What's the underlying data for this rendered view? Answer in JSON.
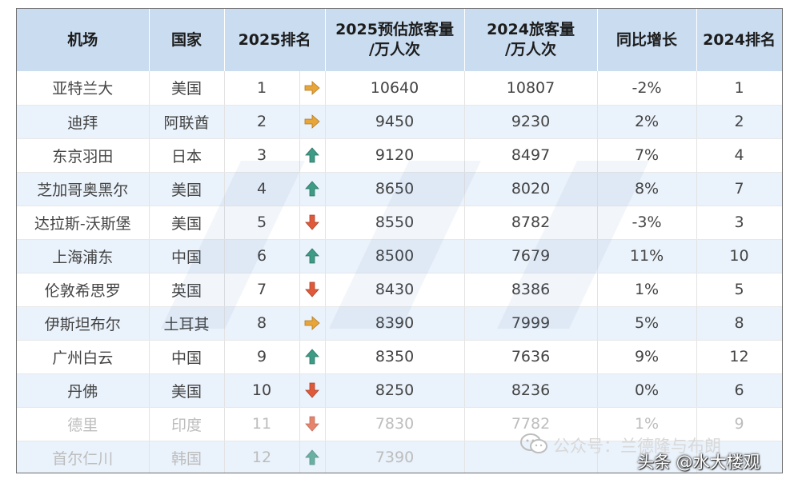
{
  "headers": {
    "airport": "机场",
    "country": "国家",
    "rank2025": "2025排名",
    "pax2025": [
      "2025预估旅客量",
      "/万人次"
    ],
    "pax2024": [
      "2024旅客量",
      "/万人次"
    ],
    "yoy": "同比增长",
    "rank2024": "2024排名"
  },
  "rows": [
    {
      "airport": "亚特兰大",
      "country": "美国",
      "rank2025": "1",
      "trend": "flat",
      "pax2025": "10640",
      "pax2024": "10807",
      "yoy": "-2%",
      "rank2024": "1"
    },
    {
      "airport": "迪拜",
      "country": "阿联酋",
      "rank2025": "2",
      "trend": "flat",
      "pax2025": "9450",
      "pax2024": "9230",
      "yoy": "2%",
      "rank2024": "2"
    },
    {
      "airport": "东京羽田",
      "country": "日本",
      "rank2025": "3",
      "trend": "up",
      "pax2025": "9120",
      "pax2024": "8497",
      "yoy": "7%",
      "rank2024": "4"
    },
    {
      "airport": "芝加哥奥黑尔",
      "country": "美国",
      "rank2025": "4",
      "trend": "up",
      "pax2025": "8650",
      "pax2024": "8020",
      "yoy": "8%",
      "rank2024": "7"
    },
    {
      "airport": "达拉斯-沃斯堡",
      "country": "美国",
      "rank2025": "5",
      "trend": "down",
      "pax2025": "8550",
      "pax2024": "8782",
      "yoy": "-3%",
      "rank2024": "3"
    },
    {
      "airport": "上海浦东",
      "country": "中国",
      "rank2025": "6",
      "trend": "up",
      "pax2025": "8500",
      "pax2024": "7679",
      "yoy": "11%",
      "rank2024": "10"
    },
    {
      "airport": "伦敦希思罗",
      "country": "英国",
      "rank2025": "7",
      "trend": "down",
      "pax2025": "8430",
      "pax2024": "8386",
      "yoy": "1%",
      "rank2024": "5"
    },
    {
      "airport": "伊斯坦布尔",
      "country": "土耳其",
      "rank2025": "8",
      "trend": "flat",
      "pax2025": "8390",
      "pax2024": "7999",
      "yoy": "5%",
      "rank2024": "8"
    },
    {
      "airport": "广州白云",
      "country": "中国",
      "rank2025": "9",
      "trend": "up",
      "pax2025": "8350",
      "pax2024": "7636",
      "yoy": "9%",
      "rank2024": "12"
    },
    {
      "airport": "丹佛",
      "country": "美国",
      "rank2025": "10",
      "trend": "down",
      "pax2025": "8250",
      "pax2024": "8236",
      "yoy": "0%",
      "rank2024": "6"
    },
    {
      "airport": "德里",
      "country": "印度",
      "rank2025": "11",
      "trend": "down",
      "pax2025": "7830",
      "pax2024": "7782",
      "yoy": "1%",
      "rank2024": "9"
    },
    {
      "airport": "首尔仁川",
      "country": "韩国",
      "rank2025": "12",
      "trend": "up",
      "pax2025": "7390",
      "pax2024": "",
      "yoy": "",
      "rank2024": ""
    }
  ],
  "trend_icons": {
    "flat": {
      "name": "right-arrow-icon",
      "color": "#e8a53a"
    },
    "up": {
      "name": "up-arrow-icon",
      "color": "#3e9b86"
    },
    "down": {
      "name": "down-arrow-icon",
      "color": "#e05a3a"
    }
  },
  "watermark": {
    "wechat": "公众号：兰德隆与布朗",
    "source": "头条 @水大楼观"
  }
}
